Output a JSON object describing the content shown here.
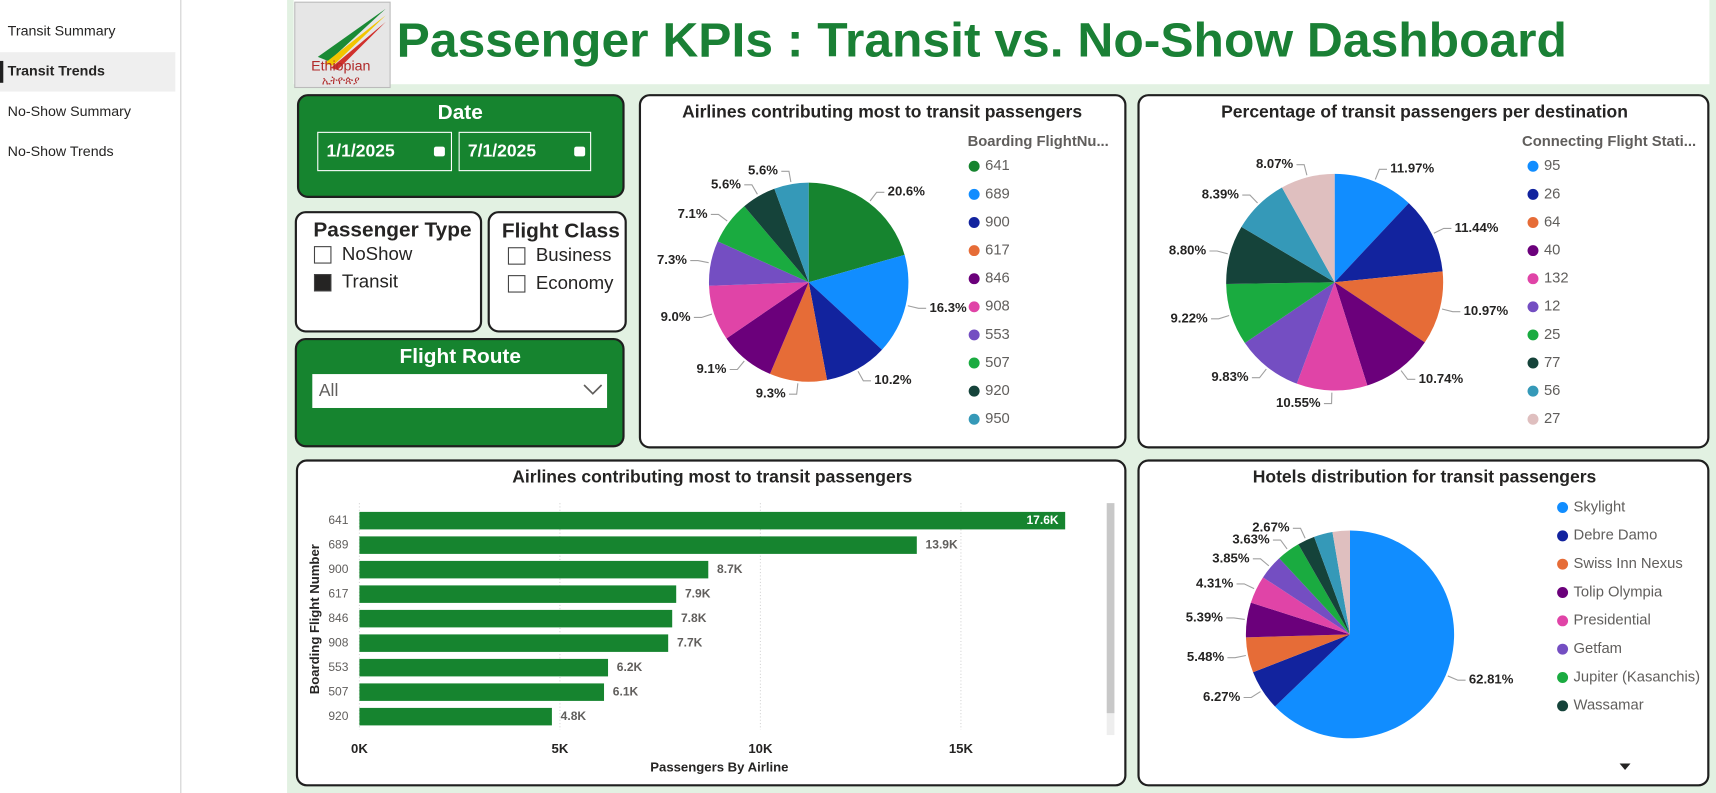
{
  "nav": {
    "items": [
      "Transit Summary",
      "Transit Trends",
      "No-Show Summary",
      "No-Show Trends"
    ],
    "selected": 1
  },
  "header": {
    "title": "Passenger KPIs : Transit vs. No-Show Dashboard",
    "logo_text": "Ethiopian",
    "logo_subtext": "ኢትዮጵያ"
  },
  "filters": {
    "date": {
      "label": "Date",
      "start": "1/1/2025",
      "end": "7/1/2025"
    },
    "passenger_type": {
      "label": "Passenger Type",
      "options": [
        {
          "label": "NoShow",
          "checked": false
        },
        {
          "label": "Transit",
          "checked": true
        }
      ]
    },
    "flight_class": {
      "label": "Flight Class",
      "options": [
        {
          "label": "Business",
          "checked": false
        },
        {
          "label": "Economy",
          "checked": false
        }
      ]
    },
    "flight_route": {
      "label": "Flight Route",
      "value": "All"
    }
  },
  "chart_data": [
    {
      "type": "pie",
      "title": "Airlines contributing most to transit passengers",
      "legend_title": "Boarding FlightNu...",
      "categories": [
        "641",
        "689",
        "900",
        "617",
        "846",
        "908",
        "553",
        "507",
        "920",
        "950"
      ],
      "values": [
        20.6,
        16.3,
        10.2,
        9.3,
        9.1,
        9.0,
        7.3,
        7.1,
        5.6,
        5.6
      ],
      "value_labels": [
        "20.6%",
        "16.3%",
        "10.2%",
        "9.3%",
        "9.1%",
        "9.0%",
        "7.3%",
        "7.1%",
        "5.6%",
        "5.6%"
      ],
      "colors": [
        "#16842f",
        "#118dff",
        "#12239e",
        "#e66c37",
        "#6b007b",
        "#e044a7",
        "#744ec2",
        "#1aab40",
        "#15433a",
        "#3599b8"
      ]
    },
    {
      "type": "pie",
      "title": "Percentage of transit passengers per destination",
      "legend_title": "Connecting Flight Stati...",
      "categories": [
        "95",
        "26",
        "64",
        "40",
        "132",
        "12",
        "25",
        "77",
        "56",
        "27"
      ],
      "values": [
        11.97,
        11.44,
        10.97,
        10.74,
        10.55,
        9.83,
        9.22,
        8.8,
        8.39,
        8.07
      ],
      "value_labels": [
        "11.97%",
        "11.44%",
        "10.97%",
        "10.74%",
        "10.55%",
        "9.83%",
        "9.22%",
        "8.80%",
        "8.39%",
        "8.07%"
      ],
      "colors": [
        "#118dff",
        "#12239e",
        "#e66c37",
        "#6b007b",
        "#e044a7",
        "#744ec2",
        "#1aab40",
        "#15433a",
        "#3599b8",
        "#dfbfbf"
      ]
    },
    {
      "type": "bar",
      "orientation": "horizontal",
      "title": "Airlines contributing most to transit passengers",
      "x_label": "Passengers By Airline",
      "y_label": "Boarding Flight Number",
      "color": "#16842f",
      "categories": [
        "641",
        "689",
        "900",
        "617",
        "846",
        "908",
        "553",
        "507",
        "920"
      ],
      "values": [
        17600,
        13900,
        8700,
        7900,
        7800,
        7700,
        6200,
        6100,
        4800
      ],
      "value_labels": [
        "17.6K",
        "13.9K",
        "8.7K",
        "7.9K",
        "7.8K",
        "7.7K",
        "6.2K",
        "6.1K",
        "4.8K"
      ],
      "xlim": [
        0,
        18500
      ],
      "xticks": [
        {
          "value": 0,
          "label": "0K"
        },
        {
          "value": 5000,
          "label": "5K"
        },
        {
          "value": 10000,
          "label": "10K"
        },
        {
          "value": 15000,
          "label": "15K"
        }
      ],
      "grid": true
    },
    {
      "type": "pie",
      "title": "Hotels distribution for transit passengers",
      "categories": [
        "Skylight",
        "Debre Damo",
        "Swiss Inn Nexus",
        "Tolip Olympia",
        "Presidential",
        "Getfam",
        "Jupiter (Kasanchis)",
        "Wassamar",
        null,
        null
      ],
      "values": [
        62.81,
        6.27,
        5.48,
        5.39,
        4.31,
        3.85,
        3.63,
        2.67,
        2.9,
        2.7
      ],
      "value_labels": [
        "62.81%",
        "6.27%",
        "5.48%",
        "5.39%",
        "4.31%",
        "3.85%",
        "3.63%",
        "2.67%",
        null,
        null
      ],
      "colors": [
        "#118dff",
        "#12239e",
        "#e66c37",
        "#6b007b",
        "#e044a7",
        "#744ec2",
        "#1aab40",
        "#15433a",
        "#3599b8",
        "#dfbfbf"
      ]
    }
  ]
}
